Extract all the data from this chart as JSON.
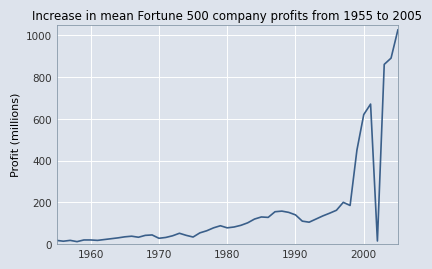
{
  "title": "Increase in mean Fortune 500 company profits from 1955 to 2005",
  "ylabel": "Profit (millions)",
  "background_color": "#dde3ec",
  "line_color": "#3a5f8a",
  "years": [
    1955,
    1956,
    1957,
    1958,
    1959,
    1960,
    1961,
    1962,
    1963,
    1964,
    1965,
    1966,
    1967,
    1968,
    1969,
    1970,
    1971,
    1972,
    1973,
    1974,
    1975,
    1976,
    1977,
    1978,
    1979,
    1980,
    1981,
    1982,
    1983,
    1984,
    1985,
    1986,
    1987,
    1988,
    1989,
    1990,
    1991,
    1992,
    1993,
    1994,
    1995,
    1996,
    1997,
    1998,
    1999,
    2000,
    2001,
    2002,
    2003,
    2004,
    2005
  ],
  "profits": [
    18,
    14,
    18,
    12,
    20,
    20,
    18,
    22,
    26,
    30,
    35,
    38,
    33,
    42,
    44,
    28,
    32,
    40,
    52,
    42,
    34,
    54,
    64,
    78,
    88,
    78,
    82,
    90,
    102,
    120,
    130,
    128,
    155,
    158,
    152,
    140,
    110,
    105,
    120,
    135,
    148,
    162,
    200,
    185,
    450,
    620,
    670,
    15,
    860,
    890,
    1025
  ],
  "ylim": [
    0,
    1050
  ],
  "xlim": [
    1955,
    2005
  ],
  "yticks": [
    0,
    200,
    400,
    600,
    800,
    1000
  ],
  "xticks": [
    1960,
    1970,
    1980,
    1990,
    2000
  ],
  "title_fontsize": 8.5,
  "label_fontsize": 8,
  "tick_fontsize": 7.5,
  "linewidth": 1.2,
  "grid_color": "#ffffff",
  "spine_color": "#8899aa"
}
